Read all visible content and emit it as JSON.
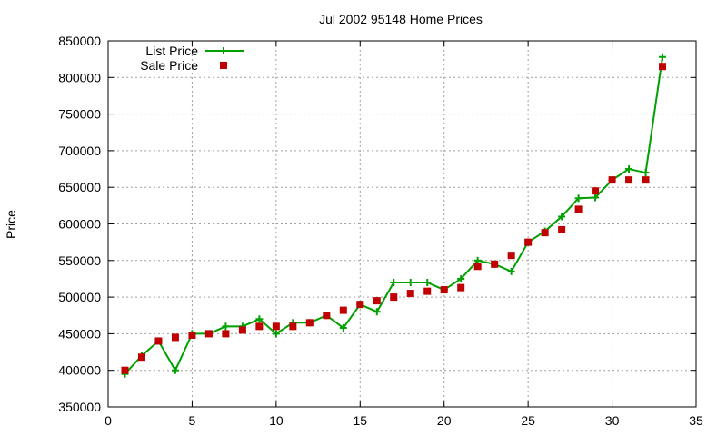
{
  "chart_data": {
    "type": "line",
    "title": "Jul 2002 95148 Home Prices",
    "xlabel": "",
    "ylabel": "Price",
    "xlim": [
      0,
      35
    ],
    "ylim": [
      350000,
      850000
    ],
    "xticks": [
      0,
      5,
      10,
      15,
      20,
      25,
      30,
      35
    ],
    "yticks": [
      350000,
      400000,
      450000,
      500000,
      550000,
      600000,
      650000,
      700000,
      750000,
      800000,
      850000
    ],
    "xtick_labels": [
      "0",
      "5",
      "10",
      "15",
      "20",
      "25",
      "30",
      "35"
    ],
    "ytick_labels": [
      "350000",
      "400000",
      "450000",
      "500000",
      "550000",
      "600000",
      "650000",
      "700000",
      "750000",
      "800000",
      "850000"
    ],
    "grid": true,
    "legend_position": "top-left",
    "x": [
      1,
      2,
      3,
      4,
      5,
      6,
      7,
      8,
      9,
      10,
      11,
      12,
      13,
      14,
      15,
      16,
      17,
      18,
      19,
      20,
      21,
      22,
      23,
      24,
      25,
      26,
      27,
      28,
      29,
      30,
      31,
      32,
      33
    ],
    "series": [
      {
        "name": "List Price",
        "style": "line+plus",
        "color": "#00a000",
        "values": [
          395000,
          420000,
          440000,
          400000,
          450000,
          450000,
          460000,
          460000,
          470000,
          450000,
          465000,
          465000,
          475000,
          458000,
          490000,
          480000,
          520000,
          520000,
          520000,
          510000,
          525000,
          550000,
          545000,
          535000,
          575000,
          590000,
          610000,
          635000,
          636000,
          660000,
          675000,
          670000,
          828000
        ]
      },
      {
        "name": "Sale Price",
        "style": "square",
        "color": "#c00000",
        "values": [
          400000,
          418000,
          440000,
          445000,
          448000,
          450000,
          450000,
          455000,
          460000,
          460000,
          460000,
          465000,
          475000,
          482000,
          490000,
          495000,
          500000,
          505000,
          508000,
          510000,
          513000,
          542000,
          545000,
          557000,
          575000,
          588000,
          592000,
          620000,
          645000,
          660000,
          660000,
          660000,
          815000
        ]
      }
    ]
  }
}
